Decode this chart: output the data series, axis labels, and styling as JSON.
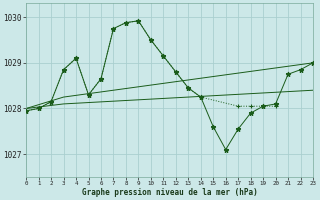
{
  "title": "Graphe pression niveau de la mer (hPa)",
  "background_color": "#cce8e8",
  "grid_color": "#aacfcf",
  "line_color": "#1a5c1a",
  "x_min": 0,
  "x_max": 23,
  "y_min": 1026.5,
  "y_max": 1030.3,
  "y_ticks": [
    1027,
    1028,
    1029,
    1030
  ],
  "x_ticks": [
    0,
    1,
    2,
    3,
    4,
    5,
    6,
    7,
    8,
    9,
    10,
    11,
    12,
    13,
    14,
    15,
    16,
    17,
    18,
    19,
    20,
    21,
    22,
    23
  ],
  "series": [
    {
      "x": [
        0,
        1,
        2,
        3,
        4,
        5,
        6,
        7,
        8,
        9,
        10,
        11,
        12,
        13,
        14,
        17,
        18,
        19,
        20
      ],
      "y": [
        1027.95,
        1028.0,
        1028.15,
        1028.85,
        1029.1,
        1028.3,
        1028.65,
        1029.75,
        1029.88,
        1029.92,
        1029.5,
        1029.15,
        1028.8,
        1028.45,
        1028.25,
        1028.05,
        1028.05,
        1028.05,
        1028.05
      ],
      "marker": "+",
      "linestyle": ":"
    },
    {
      "x": [
        0,
        1,
        2,
        3,
        4,
        5,
        6,
        7,
        8,
        9,
        10,
        11,
        12,
        13,
        14,
        15,
        16,
        17,
        18,
        19,
        20,
        21,
        22,
        23
      ],
      "y": [
        1027.95,
        1028.0,
        1028.15,
        1028.85,
        1029.1,
        1028.3,
        1028.65,
        1029.75,
        1029.88,
        1029.92,
        1029.5,
        1029.15,
        1028.8,
        1028.45,
        1028.25,
        1027.6,
        1027.1,
        1027.55,
        1027.9,
        1028.05,
        1028.1,
        1028.75,
        1028.85,
        1029.0
      ],
      "marker": "*",
      "linestyle": "-"
    },
    {
      "x": [
        0,
        3,
        23
      ],
      "y": [
        1028.0,
        1028.25,
        1029.0
      ],
      "marker": null,
      "linestyle": "-"
    },
    {
      "x": [
        0,
        3,
        23
      ],
      "y": [
        1028.0,
        1028.1,
        1028.4
      ],
      "marker": null,
      "linestyle": "-"
    }
  ]
}
